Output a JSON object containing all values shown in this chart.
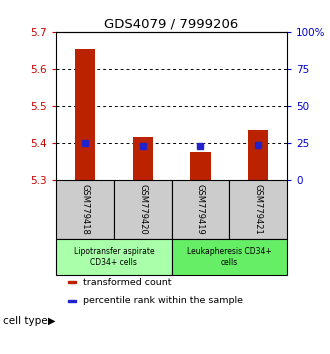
{
  "title": "GDS4079 / 7999206",
  "samples": [
    "GSM779418",
    "GSM779420",
    "GSM779419",
    "GSM779421"
  ],
  "bar_values": [
    5.655,
    5.415,
    5.375,
    5.435
  ],
  "percentile_values": [
    5.4,
    5.39,
    5.39,
    5.395
  ],
  "bar_color": "#bb2200",
  "dot_color": "#2222cc",
  "bar_baseline": 5.3,
  "ylim_left": [
    5.3,
    5.7
  ],
  "ylim_right": [
    0,
    100
  ],
  "yticks_left": [
    5.3,
    5.4,
    5.5,
    5.6,
    5.7
  ],
  "yticks_right": [
    0,
    25,
    50,
    75,
    100
  ],
  "ytick_labels_right": [
    "0",
    "25",
    "50",
    "75",
    "100%"
  ],
  "grid_lines": [
    5.4,
    5.5,
    5.6
  ],
  "groups": [
    {
      "label": "Lipotransfer aspirate\nCD34+ cells",
      "samples_idx": [
        0,
        1
      ],
      "color": "#aaffaa"
    },
    {
      "label": "Leukapheresis CD34+\ncells",
      "samples_idx": [
        2,
        3
      ],
      "color": "#66ee66"
    }
  ],
  "cell_type_label": "cell type",
  "legend_entries": [
    {
      "color": "#bb2200",
      "label": "transformed count"
    },
    {
      "color": "#2222cc",
      "label": "percentile rank within the sample"
    }
  ],
  "bar_width": 0.35,
  "left_tick_color": "#cc0000",
  "right_tick_color": "#0000cc",
  "sample_box_color": "#cccccc",
  "title_fontsize": 9.5
}
